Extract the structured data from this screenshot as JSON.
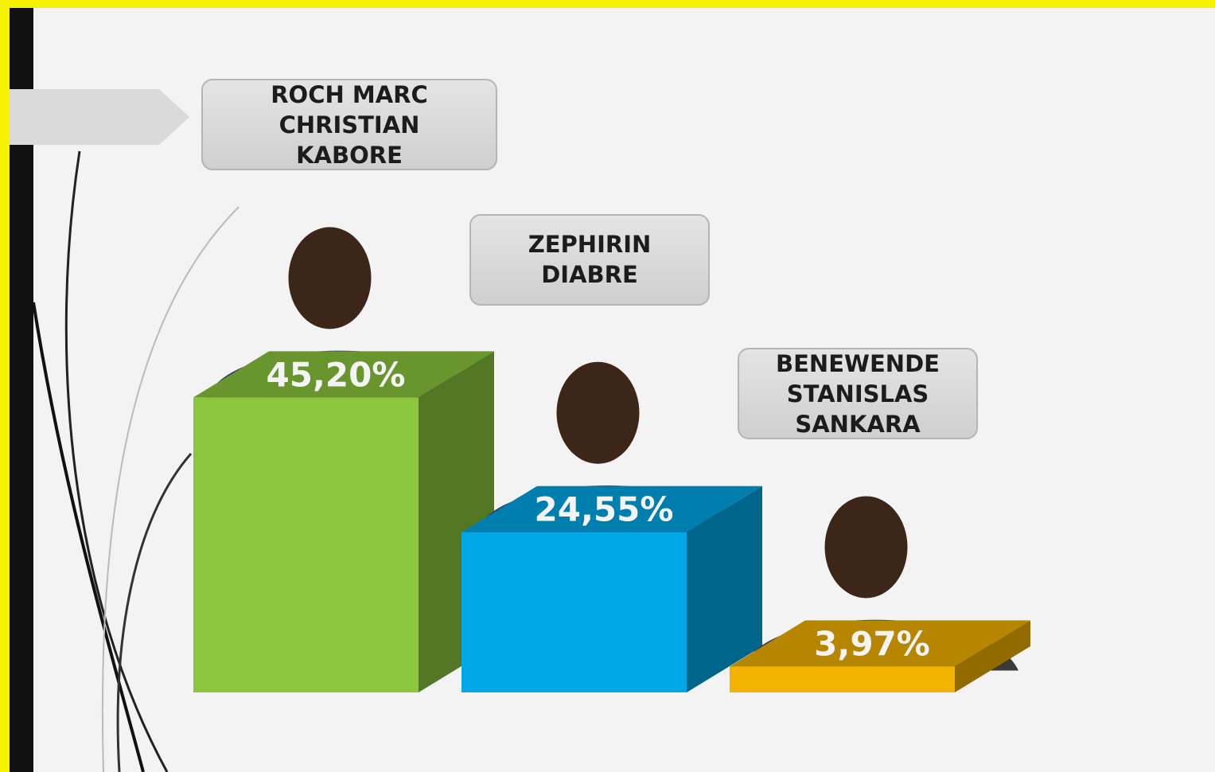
{
  "chart_data": {
    "type": "bar3d",
    "categories": [
      "ROCH MARC CHRISTIAN KABORE",
      "ZEPHIRIN DIABRE",
      "BENEWENDE STANISLAS SANKARA"
    ],
    "values": [
      45.2,
      24.55,
      3.97
    ],
    "value_labels": [
      "45,20%",
      "24,55%",
      "3,97%"
    ],
    "colors": [
      "#8cc63f",
      "#00a8e8",
      "#f2b200"
    ]
  }
}
